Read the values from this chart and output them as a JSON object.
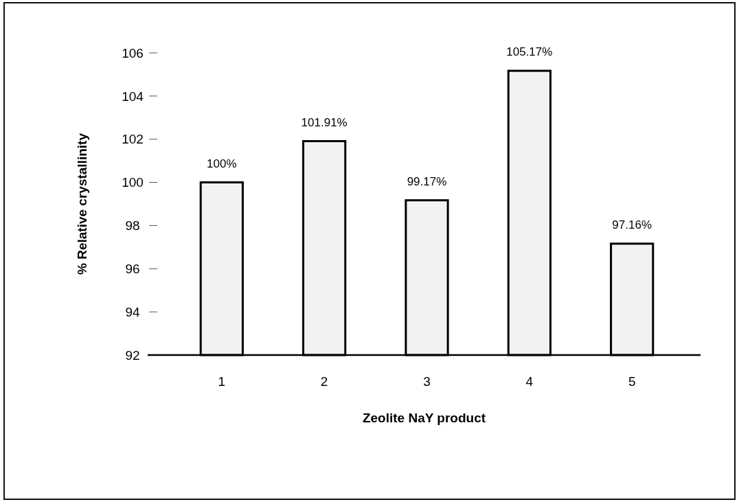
{
  "chart_data": {
    "type": "bar",
    "xlabel": "Zeolite NaY product",
    "ylabel": "% Relative crystallinity",
    "categories": [
      "1",
      "2",
      "3",
      "4",
      "5"
    ],
    "values": [
      100,
      101.91,
      99.17,
      105.17,
      97.16
    ],
    "value_labels": [
      "100%",
      "101.91%",
      "99.17%",
      "105.17%",
      "97.16%"
    ],
    "color": "#f2f2f2",
    "ylim": [
      92,
      106
    ],
    "yticks": [
      92,
      94,
      96,
      98,
      100,
      102,
      104,
      106
    ],
    "grid": false
  }
}
